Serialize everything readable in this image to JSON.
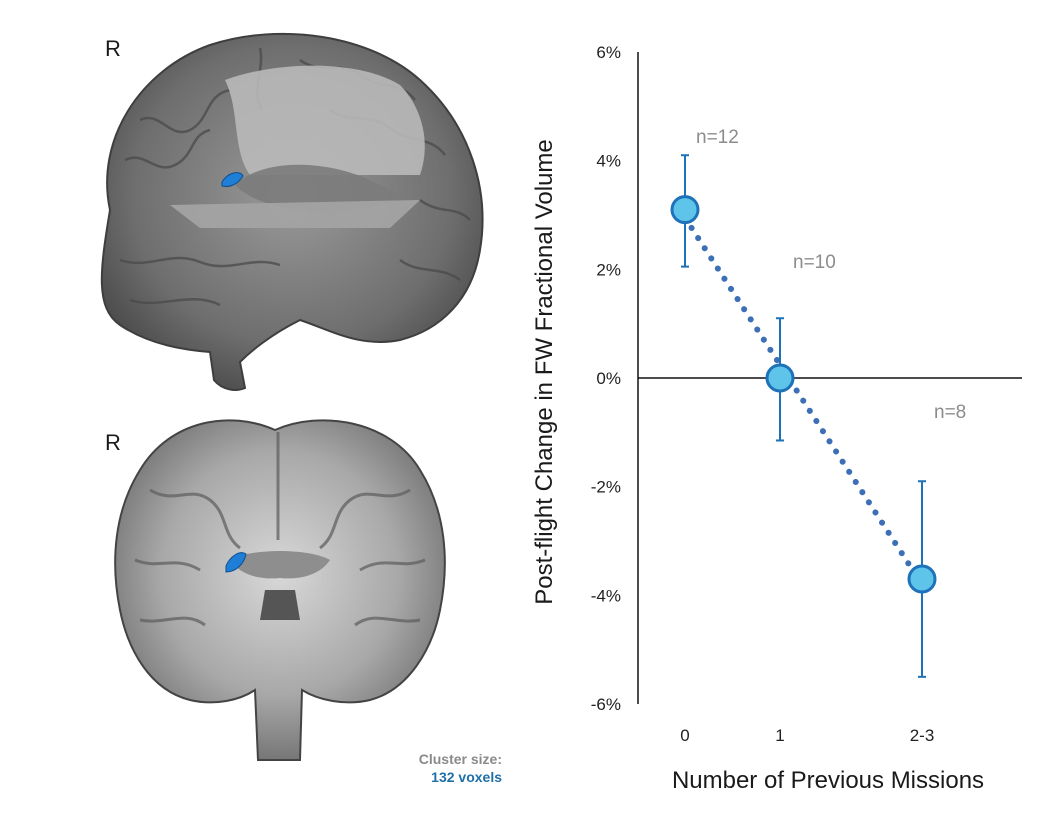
{
  "brain": {
    "sagittal_label": "R",
    "coronal_label": "R",
    "cluster_title": "Cluster size:",
    "cluster_value": "132 voxels",
    "cluster_title_color": "#8a8a8a",
    "cluster_value_color": "#1f6fa8",
    "highlight_color": "#1f7ed6"
  },
  "chart_data": {
    "type": "scatter",
    "x_categories": [
      "0",
      "1",
      "2-3"
    ],
    "ylabel": "Post-flight Change in FW Fractional Volume",
    "xlabel": "Number of Previous Missions",
    "ylim": [
      -6,
      6
    ],
    "yticks": [
      6,
      4,
      2,
      0,
      -2,
      -4,
      -6
    ],
    "ytick_labels": [
      "6%",
      "4%",
      "2%",
      "0%",
      "-2%",
      "-4%",
      "-6%"
    ],
    "points": [
      {
        "x": "0",
        "y": 3.1,
        "err_low": 2.05,
        "err_high": 4.1,
        "label": "n=12"
      },
      {
        "x": "1",
        "y": 0.0,
        "err_low": -1.15,
        "err_high": 1.1,
        "label": "n=10"
      },
      {
        "x": "2-3",
        "y": -3.7,
        "err_low": -5.5,
        "err_high": -1.9,
        "label": "n=8"
      }
    ],
    "trendline": {
      "from": {
        "x": "0",
        "y": 2.95
      },
      "to": {
        "x": "2-3",
        "y": -3.8
      },
      "style": "dotted"
    },
    "colors": {
      "marker_fill": "#5fc4ea",
      "marker_edge": "#1d72b8",
      "error_bar": "#1d72b8",
      "trendline": "#3d6fb6"
    }
  }
}
